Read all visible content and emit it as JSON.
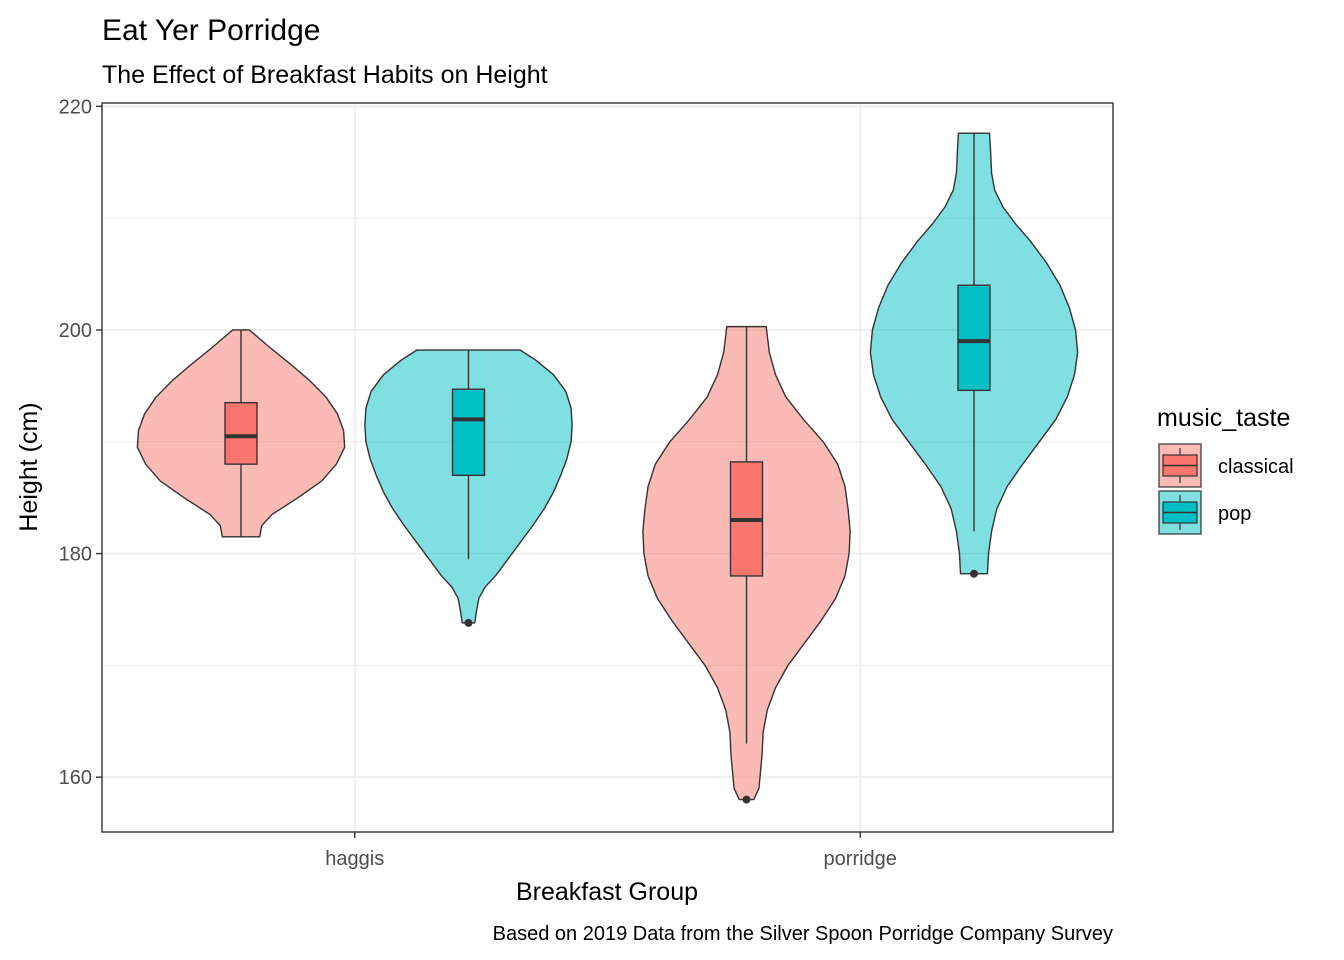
{
  "chart_data": {
    "type": "violin",
    "title": "Eat Yer Porridge",
    "subtitle": "The Effect of Breakfast Habits on Height",
    "xlabel": "Breakfast Group",
    "ylabel": "Height (cm)",
    "caption": "Based on 2019 Data from the Silver Spoon Porridge Company Survey",
    "categories": [
      "haggis",
      "porridge"
    ],
    "ylim": [
      155.1,
      220.3
    ],
    "yticks": [
      160,
      180,
      200,
      220
    ],
    "grid": true,
    "legend": {
      "title": "music_taste",
      "position": "right",
      "entries": [
        {
          "label": "classical",
          "color": "#F8766D"
        },
        {
          "label": "pop",
          "color": "#00BFC4"
        }
      ]
    },
    "series": [
      {
        "name": "classical",
        "color": "#F8766D",
        "groups": [
          {
            "category": "haggis",
            "min": 181.5,
            "q1": 188.0,
            "median": 190.5,
            "q3": 193.5,
            "max": 200.0,
            "outliers": [],
            "density": [
              [
                181.5,
                0.18
              ],
              [
                182.5,
                0.2
              ],
              [
                183.5,
                0.3
              ],
              [
                185,
                0.55
              ],
              [
                186.5,
                0.78
              ],
              [
                188,
                0.92
              ],
              [
                189.5,
                1.0
              ],
              [
                191,
                0.99
              ],
              [
                192.5,
                0.93
              ],
              [
                194,
                0.82
              ],
              [
                195.5,
                0.66
              ],
              [
                197,
                0.47
              ],
              [
                198.5,
                0.27
              ],
              [
                200,
                0.08
              ]
            ]
          },
          {
            "category": "porridge",
            "min": 163.0,
            "q1": 178.0,
            "median": 183.0,
            "q3": 188.2,
            "max": 200.3,
            "outliers": [
              158.0
            ],
            "density": [
              [
                158,
                0.07
              ],
              [
                159,
                0.12
              ],
              [
                160,
                0.13
              ],
              [
                162,
                0.15
              ],
              [
                164,
                0.16
              ],
              [
                166,
                0.2
              ],
              [
                168,
                0.28
              ],
              [
                170,
                0.4
              ],
              [
                172,
                0.56
              ],
              [
                174,
                0.72
              ],
              [
                176,
                0.86
              ],
              [
                178,
                0.95
              ],
              [
                180,
                0.99
              ],
              [
                182,
                1.0
              ],
              [
                184,
                0.98
              ],
              [
                186,
                0.95
              ],
              [
                188,
                0.88
              ],
              [
                190,
                0.74
              ],
              [
                192,
                0.55
              ],
              [
                194,
                0.38
              ],
              [
                196,
                0.28
              ],
              [
                198,
                0.22
              ],
              [
                200.3,
                0.19
              ]
            ]
          }
        ]
      },
      {
        "name": "pop",
        "color": "#00BFC4",
        "groups": [
          {
            "category": "haggis",
            "min": 179.5,
            "q1": 187.0,
            "median": 192.0,
            "q3": 194.7,
            "max": 198.2,
            "outliers": [
              173.8
            ],
            "density": [
              [
                173.8,
                0.06
              ],
              [
                175,
                0.08
              ],
              [
                176,
                0.1
              ],
              [
                177,
                0.16
              ],
              [
                178,
                0.26
              ],
              [
                179.5,
                0.38
              ],
              [
                181,
                0.5
              ],
              [
                182.5,
                0.62
              ],
              [
                184,
                0.73
              ],
              [
                185.5,
                0.82
              ],
              [
                187,
                0.89
              ],
              [
                188.5,
                0.95
              ],
              [
                190,
                0.99
              ],
              [
                191.5,
                1.0
              ],
              [
                193,
                0.99
              ],
              [
                194.5,
                0.94
              ],
              [
                196,
                0.82
              ],
              [
                197.3,
                0.65
              ],
              [
                198.2,
                0.5
              ]
            ]
          },
          {
            "category": "porridge",
            "min": 182.0,
            "q1": 194.6,
            "median": 199.0,
            "q3": 204.0,
            "max": 217.6,
            "outliers": [
              178.2
            ],
            "density": [
              [
                178.2,
                0.13
              ],
              [
                180,
                0.14
              ],
              [
                182,
                0.17
              ],
              [
                184,
                0.22
              ],
              [
                186,
                0.32
              ],
              [
                188,
                0.47
              ],
              [
                190,
                0.63
              ],
              [
                192,
                0.79
              ],
              [
                194,
                0.9
              ],
              [
                196,
                0.97
              ],
              [
                198,
                1.0
              ],
              [
                200,
                0.98
              ],
              [
                202,
                0.92
              ],
              [
                204,
                0.83
              ],
              [
                206,
                0.7
              ],
              [
                208,
                0.54
              ],
              [
                209.5,
                0.4
              ],
              [
                211,
                0.28
              ],
              [
                212.5,
                0.2
              ],
              [
                214,
                0.17
              ],
              [
                216,
                0.16
              ],
              [
                217.6,
                0.15
              ]
            ]
          }
        ]
      }
    ]
  }
}
